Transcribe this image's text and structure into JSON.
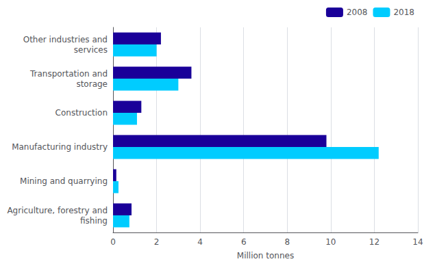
{
  "chart_data": {
    "type": "bar",
    "orientation": "horizontal",
    "categories": [
      "Other industries and\nservices",
      "Transportation and\nstorage",
      "Construction",
      "Manufacturing industry",
      "Mining and quarrying",
      "Agriculture, forestry and\nfishing"
    ],
    "series": [
      {
        "name": "2008",
        "color": "#1a0099",
        "values": [
          2.2,
          3.6,
          1.3,
          9.8,
          0.15,
          0.85
        ]
      },
      {
        "name": "2018",
        "color": "#00ccff",
        "values": [
          2.0,
          3.0,
          1.1,
          12.2,
          0.25,
          0.75
        ]
      }
    ],
    "xlabel": "Million tonnes",
    "xlim": [
      0,
      14
    ],
    "xticks": [
      0,
      2,
      4,
      6,
      8,
      10,
      12,
      14
    ],
    "grid": true,
    "legend": "upper right"
  }
}
